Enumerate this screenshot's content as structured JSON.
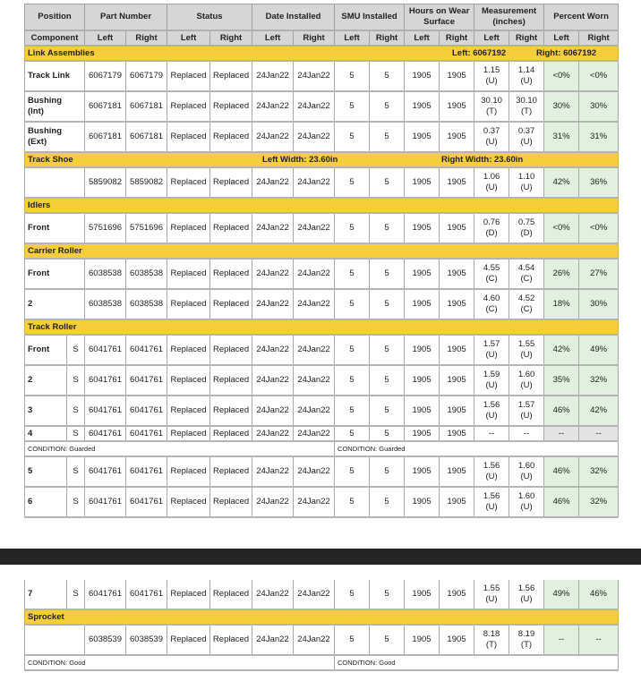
{
  "header": {
    "top": [
      "Position",
      "Part Number",
      "Status",
      "Date Installed",
      "SMU Installed",
      "Hours on Wear Surface",
      "Measurement (inches)",
      "Percent Worn"
    ],
    "sub": [
      "Component",
      "Left",
      "Right",
      "Left",
      "Right",
      "Left",
      "Right",
      "Left",
      "Right",
      "Left",
      "Right",
      "Left",
      "Right",
      "Left",
      "Right"
    ]
  },
  "colors": {
    "section": "#f6cd3a",
    "header": "#d6d6d6",
    "worn_ok": "#e1f0df",
    "no_data": "#e4e4e4",
    "page_break": "#242424"
  },
  "tables": [
    {
      "items": [
        {
          "type": "section",
          "title": "Link Assemblies",
          "left": "Left: 6067192",
          "right": "Right: 6067192",
          "lpos": "474px",
          "rpos": "568px"
        },
        {
          "type": "row",
          "pos": "Track Link",
          "s": "",
          "partL": "6067179",
          "partR": "6067179",
          "statL": "Replaced",
          "statR": "Replaced",
          "dateL": "24Jan22",
          "dateR": "24Jan22",
          "smuL": "5",
          "smuR": "5",
          "hrsL": "1905",
          "hrsR": "1905",
          "measL": "1.15\n(U)",
          "measR": "1.14\n(U)",
          "pctL": "<0%",
          "pctR": "<0%"
        },
        {
          "type": "row",
          "pos": "Bushing\n(Int)",
          "s": "",
          "partL": "6067181",
          "partR": "6067181",
          "statL": "Replaced",
          "statR": "Replaced",
          "dateL": "24Jan22",
          "dateR": "24Jan22",
          "smuL": "5",
          "smuR": "5",
          "hrsL": "1905",
          "hrsR": "1905",
          "measL": "30.10\n(T)",
          "measR": "30.10\n(T)",
          "pctL": "30%",
          "pctR": "30%"
        },
        {
          "type": "row",
          "pos": "Bushing\n(Ext)",
          "s": "",
          "partL": "6067181",
          "partR": "6067181",
          "statL": "Replaced",
          "statR": "Replaced",
          "dateL": "24Jan22",
          "dateR": "24Jan22",
          "smuL": "5",
          "smuR": "5",
          "hrsL": "1905",
          "hrsR": "1905",
          "measL": "0.37\n(U)",
          "measR": "0.37\n(U)",
          "pctL": "31%",
          "pctR": "31%"
        },
        {
          "type": "section",
          "title": "Track Shoe",
          "left": "Left Width: 23.60in",
          "right": "Right Width: 23.60in",
          "lpos": "262px",
          "rpos": "462px"
        },
        {
          "type": "row",
          "pos": "",
          "s": "",
          "partL": "5859082",
          "partR": "5859082",
          "statL": "Replaced",
          "statR": "Replaced",
          "dateL": "24Jan22",
          "dateR": "24Jan22",
          "smuL": "5",
          "smuR": "5",
          "hrsL": "1905",
          "hrsR": "1905",
          "measL": "1.06\n(U)",
          "measR": "1.10\n(U)",
          "pctL": "42%",
          "pctR": "36%"
        },
        {
          "type": "section",
          "title": "Idlers"
        },
        {
          "type": "row",
          "pos": "Front",
          "s": "",
          "partL": "5751696",
          "partR": "5751696",
          "statL": "Replaced",
          "statR": "Replaced",
          "dateL": "24Jan22",
          "dateR": "24Jan22",
          "smuL": "5",
          "smuR": "5",
          "hrsL": "1905",
          "hrsR": "1905",
          "measL": "0.76\n(D)",
          "measR": "0.75\n(D)",
          "pctL": "<0%",
          "pctR": "<0%"
        },
        {
          "type": "section",
          "title": "Carrier Roller"
        },
        {
          "type": "row",
          "pos": "Front",
          "s": "",
          "partL": "6038538",
          "partR": "6038538",
          "statL": "Replaced",
          "statR": "Replaced",
          "dateL": "24Jan22",
          "dateR": "24Jan22",
          "smuL": "5",
          "smuR": "5",
          "hrsL": "1905",
          "hrsR": "1905",
          "measL": "4.55\n(C)",
          "measR": "4.54\n(C)",
          "pctL": "26%",
          "pctR": "27%"
        },
        {
          "type": "row",
          "pos": "2",
          "s": "",
          "partL": "6038538",
          "partR": "6038538",
          "statL": "Replaced",
          "statR": "Replaced",
          "dateL": "24Jan22",
          "dateR": "24Jan22",
          "smuL": "5",
          "smuR": "5",
          "hrsL": "1905",
          "hrsR": "1905",
          "measL": "4.60\n(C)",
          "measR": "4.52\n(C)",
          "pctL": "18%",
          "pctR": "30%"
        },
        {
          "type": "section",
          "title": "Track Roller"
        },
        {
          "type": "row",
          "pos": "Front",
          "s": "S",
          "partL": "6041761",
          "partR": "6041761",
          "statL": "Replaced",
          "statR": "Replaced",
          "dateL": "24Jan22",
          "dateR": "24Jan22",
          "smuL": "5",
          "smuR": "5",
          "hrsL": "1905",
          "hrsR": "1905",
          "measL": "1.57\n(U)",
          "measR": "1.55\n(U)",
          "pctL": "42%",
          "pctR": "49%"
        },
        {
          "type": "row",
          "pos": "2",
          "s": "S",
          "partL": "6041761",
          "partR": "6041761",
          "statL": "Replaced",
          "statR": "Replaced",
          "dateL": "24Jan22",
          "dateR": "24Jan22",
          "smuL": "5",
          "smuR": "5",
          "hrsL": "1905",
          "hrsR": "1905",
          "measL": "1.59\n(U)",
          "measR": "1.60\n(U)",
          "pctL": "35%",
          "pctR": "32%"
        },
        {
          "type": "row",
          "pos": "3",
          "s": "S",
          "partL": "6041761",
          "partR": "6041761",
          "statL": "Replaced",
          "statR": "Replaced",
          "dateL": "24Jan22",
          "dateR": "24Jan22",
          "smuL": "5",
          "smuR": "5",
          "hrsL": "1905",
          "hrsR": "1905",
          "measL": "1.56\n(U)",
          "measR": "1.57\n(U)",
          "pctL": "46%",
          "pctR": "42%"
        },
        {
          "type": "row",
          "compact": true,
          "pos": "4",
          "s": "S",
          "partL": "6041761",
          "partR": "6041761",
          "statL": "Replaced",
          "statR": "Replaced",
          "dateL": "24Jan22",
          "dateR": "24Jan22",
          "smuL": "5",
          "smuR": "5",
          "hrsL": "1905",
          "hrsR": "1905",
          "measL": "--",
          "measR": "--",
          "pctL": "--",
          "pctR": "--"
        },
        {
          "type": "condition",
          "left": "CONDITION: Guarded",
          "right": "CONDITION: Guarded"
        },
        {
          "type": "row",
          "pos": "5",
          "s": "S",
          "partL": "6041761",
          "partR": "6041761",
          "statL": "Replaced",
          "statR": "Replaced",
          "dateL": "24Jan22",
          "dateR": "24Jan22",
          "smuL": "5",
          "smuR": "5",
          "hrsL": "1905",
          "hrsR": "1905",
          "measL": "1.56\n(U)",
          "measR": "1.60\n(U)",
          "pctL": "46%",
          "pctR": "32%"
        },
        {
          "type": "row",
          "pos": "6",
          "s": "S",
          "partL": "6041761",
          "partR": "6041761",
          "statL": "Replaced",
          "statR": "Replaced",
          "dateL": "24Jan22",
          "dateR": "24Jan22",
          "smuL": "5",
          "smuR": "5",
          "hrsL": "1905",
          "hrsR": "1905",
          "measL": "1.56\n(U)",
          "measR": "1.60\n(U)",
          "pctL": "46%",
          "pctR": "32%"
        }
      ]
    },
    {
      "items": [
        {
          "type": "row",
          "pos": "7",
          "s": "S",
          "partL": "6041761",
          "partR": "6041761",
          "statL": "Replaced",
          "statR": "Replaced",
          "dateL": "24Jan22",
          "dateR": "24Jan22",
          "smuL": "5",
          "smuR": "5",
          "hrsL": "1905",
          "hrsR": "1905",
          "measL": "1.55\n(U)",
          "measR": "1.56\n(U)",
          "pctL": "49%",
          "pctR": "46%"
        },
        {
          "type": "section",
          "title": "Sprocket"
        },
        {
          "type": "row",
          "pos": "",
          "s": "",
          "partL": "6038539",
          "partR": "6038539",
          "statL": "Replaced",
          "statR": "Replaced",
          "dateL": "24Jan22",
          "dateR": "24Jan22",
          "smuL": "5",
          "smuR": "5",
          "hrsL": "1905",
          "hrsR": "1905",
          "measL": "8.18\n(T)",
          "measR": "8.19\n(T)",
          "pctL": "--",
          "pctR": "--"
        },
        {
          "type": "condition",
          "left": "CONDITION: Good",
          "right": "CONDITION: Good"
        }
      ]
    }
  ]
}
